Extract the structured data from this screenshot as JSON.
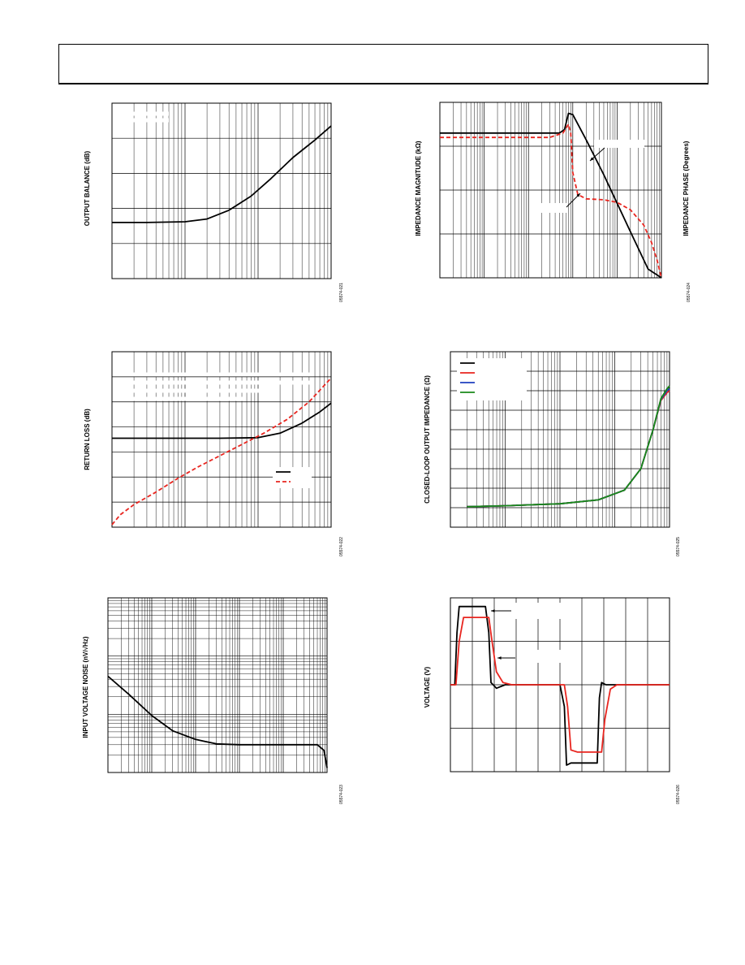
{
  "page": {
    "header_box": true
  },
  "chart_data": [
    {
      "type": "line",
      "ylabel": "OUTPUT BALANCE (dB)",
      "figure_code": "05574-021",
      "xscale": "log",
      "xlim": [
        1,
        1000
      ],
      "ylim": [
        0,
        5
      ],
      "grid": true,
      "series": [
        {
          "color": "#000000",
          "dash": "solid",
          "x": [
            1,
            3,
            10,
            20,
            40,
            80,
            150,
            300,
            600,
            1000
          ],
          "y": [
            1.6,
            1.6,
            1.62,
            1.7,
            1.95,
            2.35,
            2.85,
            3.45,
            3.95,
            4.35
          ]
        }
      ]
    },
    {
      "type": "line",
      "ylabel": "RETURN LOSS (dB)",
      "figure_code": "05574-022",
      "xscale": "log",
      "xlim": [
        1,
        1000
      ],
      "ylim": [
        0,
        7
      ],
      "grid": true,
      "legend_position": "lower-right",
      "series": [
        {
          "color": "#000000",
          "dash": "solid",
          "x": [
            1,
            3,
            10,
            30,
            100,
            200,
            400,
            700,
            1000
          ],
          "y": [
            3.55,
            3.55,
            3.55,
            3.55,
            3.57,
            3.75,
            4.15,
            4.6,
            4.95
          ]
        },
        {
          "color": "#e8251f",
          "dash": "dashed",
          "x": [
            1,
            1.3,
            2,
            4,
            8,
            15,
            30,
            60,
            120,
            250,
            500,
            1000
          ],
          "y": [
            0.1,
            0.5,
            0.9,
            1.4,
            1.95,
            2.4,
            2.85,
            3.3,
            3.75,
            4.3,
            5.0,
            5.95
          ]
        }
      ]
    },
    {
      "type": "line",
      "ylabel": "INPUT VOLTAGE NOISE (nV/√Hz)",
      "figure_code": "05574-023",
      "xscale": "log",
      "yscale": "log",
      "xlim": [
        1,
        100000
      ],
      "ylim": [
        1,
        1000
      ],
      "grid": true,
      "series": [
        {
          "color": "#000000",
          "dash": "solid",
          "x": [
            1,
            3,
            10,
            30,
            100,
            300,
            1000,
            10000,
            60000,
            85000,
            100000
          ],
          "y": [
            45,
            22,
            9.5,
            5.2,
            3.7,
            3.1,
            3.0,
            3.0,
            3.0,
            2.4,
            1.2
          ]
        }
      ]
    },
    {
      "type": "line",
      "ylabel": "IMPEDANCE MAGNITUDE (kΩ)",
      "y2label": "IMPEDANCE PHASE (Degrees)",
      "figure_code": "05574-024",
      "xscale": "log",
      "xlim": [
        1,
        100000
      ],
      "ylim": [
        0,
        4
      ],
      "grid": true,
      "series": [
        {
          "color": "#000000",
          "dash": "solid",
          "x": [
            1,
            500,
            650,
            800,
            1000,
            2000,
            5000,
            10000,
            20000,
            50000,
            100000
          ],
          "y": [
            3.3,
            3.3,
            3.38,
            3.75,
            3.72,
            3.15,
            2.35,
            1.7,
            1.05,
            0.2,
            0.0
          ]
        },
        {
          "color": "#e8251f",
          "dash": "dashed",
          "x": [
            1,
            300,
            600,
            800,
            900,
            1000,
            1300,
            2000,
            5000,
            10000,
            20000,
            40000,
            60000,
            80000,
            100000
          ],
          "y": [
            3.2,
            3.2,
            3.3,
            3.5,
            3.3,
            2.4,
            1.9,
            1.8,
            1.78,
            1.72,
            1.55,
            1.2,
            0.8,
            0.4,
            0.0
          ]
        }
      ]
    },
    {
      "type": "line",
      "ylabel": "CLOSED-LOOP OUTPUT IMPEDANCE (Ω)",
      "figure_code": "05574-025",
      "xscale": "log",
      "xlim": [
        0.1,
        1000
      ],
      "ylim": [
        0,
        9
      ],
      "grid": true,
      "legend_position": "top-left",
      "series": [
        {
          "color": "#000000",
          "dash": "solid",
          "x": [
            0.2,
            1,
            10,
            50,
            150,
            300,
            500,
            700,
            900,
            1000
          ],
          "y": [
            1.05,
            1.1,
            1.2,
            1.4,
            1.9,
            3.0,
            5.0,
            6.6,
            7.1,
            7.2
          ]
        },
        {
          "color": "#e8251f",
          "dash": "solid",
          "x": [
            0.2,
            1,
            10,
            50,
            150,
            300,
            500,
            700,
            900,
            1000
          ],
          "y": [
            1.05,
            1.1,
            1.2,
            1.4,
            1.9,
            3.0,
            5.0,
            6.5,
            6.9,
            7.0
          ]
        },
        {
          "color": "#1f3fbf",
          "dash": "solid",
          "x": [
            0.2,
            1,
            10,
            50,
            150,
            300,
            500,
            700,
            900,
            1000
          ],
          "y": [
            1.05,
            1.1,
            1.2,
            1.4,
            1.9,
            3.0,
            5.0,
            6.55,
            7.0,
            7.1
          ]
        },
        {
          "color": "#1a8a1a",
          "dash": "solid",
          "x": [
            0.2,
            1,
            10,
            50,
            150,
            300,
            500,
            700,
            900,
            1000
          ],
          "y": [
            1.05,
            1.1,
            1.2,
            1.4,
            1.9,
            3.0,
            5.0,
            6.6,
            7.1,
            7.25
          ]
        }
      ]
    },
    {
      "type": "line",
      "ylabel": "VOLTAGE (V)",
      "figure_code": "05574-026",
      "xscale": "linear",
      "xlim": [
        0,
        10
      ],
      "ylim": [
        -2,
        2
      ],
      "grid": true,
      "series": [
        {
          "color": "#000000",
          "dash": "solid",
          "x": [
            0,
            0.2,
            0.3,
            0.4,
            1.6,
            1.75,
            1.85,
            2.1,
            2.5,
            5.0,
            5.2,
            5.3,
            5.5,
            6.7,
            6.8,
            6.9,
            7.1,
            10
          ],
          "y": [
            0,
            0,
            1.2,
            1.8,
            1.8,
            1.2,
            0.05,
            -0.08,
            0,
            0,
            -0.5,
            -1.85,
            -1.8,
            -1.8,
            -0.3,
            0.05,
            0,
            0
          ]
        },
        {
          "color": "#e8251f",
          "dash": "solid",
          "x": [
            0,
            0.25,
            0.4,
            0.6,
            1.75,
            1.9,
            2.1,
            2.4,
            2.8,
            5.2,
            5.35,
            5.5,
            5.8,
            6.9,
            7.05,
            7.3,
            7.6,
            10
          ],
          "y": [
            0,
            0,
            1.0,
            1.55,
            1.55,
            1.0,
            0.3,
            0.05,
            0,
            0,
            -0.5,
            -1.5,
            -1.55,
            -1.55,
            -0.8,
            -0.1,
            0,
            0
          ]
        }
      ]
    }
  ]
}
